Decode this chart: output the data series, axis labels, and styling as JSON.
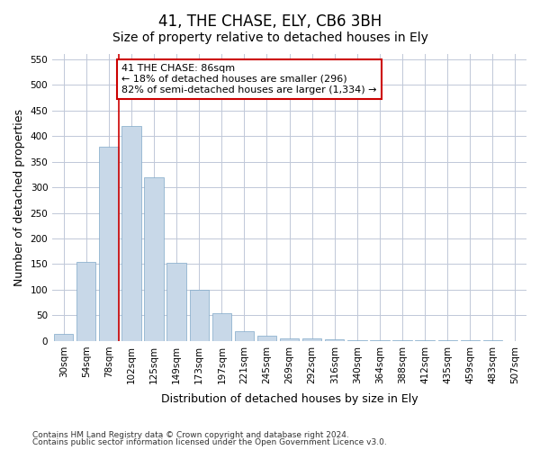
{
  "title": "41, THE CHASE, ELY, CB6 3BH",
  "subtitle": "Size of property relative to detached houses in Ely",
  "xlabel": "Distribution of detached houses by size in Ely",
  "ylabel": "Number of detached properties",
  "footnote1": "Contains HM Land Registry data © Crown copyright and database right 2024.",
  "footnote2": "Contains public sector information licensed under the Open Government Licence v3.0.",
  "bin_labels": [
    "30sqm",
    "54sqm",
    "78sqm",
    "102sqm",
    "125sqm",
    "149sqm",
    "173sqm",
    "197sqm",
    "221sqm",
    "245sqm",
    "269sqm",
    "292sqm",
    "316sqm",
    "340sqm",
    "364sqm",
    "388sqm",
    "412sqm",
    "435sqm",
    "459sqm",
    "483sqm",
    "507sqm"
  ],
  "bar_values": [
    13,
    155,
    380,
    420,
    320,
    153,
    100,
    55,
    20,
    10,
    5,
    5,
    3,
    2,
    2,
    2,
    2,
    2,
    2,
    2
  ],
  "bar_color": "#c8d8e8",
  "bar_edge_color": "#7fa8c8",
  "marker_bin_index": 2,
  "ylim": [
    0,
    560
  ],
  "yticks": [
    0,
    50,
    100,
    150,
    200,
    250,
    300,
    350,
    400,
    450,
    500,
    550
  ],
  "annotation_text": "41 THE CHASE: 86sqm\n← 18% of detached houses are smaller (296)\n82% of semi-detached houses are larger (1,334) →",
  "annotation_box_color": "#ffffff",
  "annotation_box_edge": "#cc0000",
  "background_color": "#ffffff",
  "grid_color": "#c0c8d8",
  "title_fontsize": 12,
  "subtitle_fontsize": 10,
  "axis_label_fontsize": 9,
  "tick_fontsize": 7.5,
  "annotation_fontsize": 8
}
